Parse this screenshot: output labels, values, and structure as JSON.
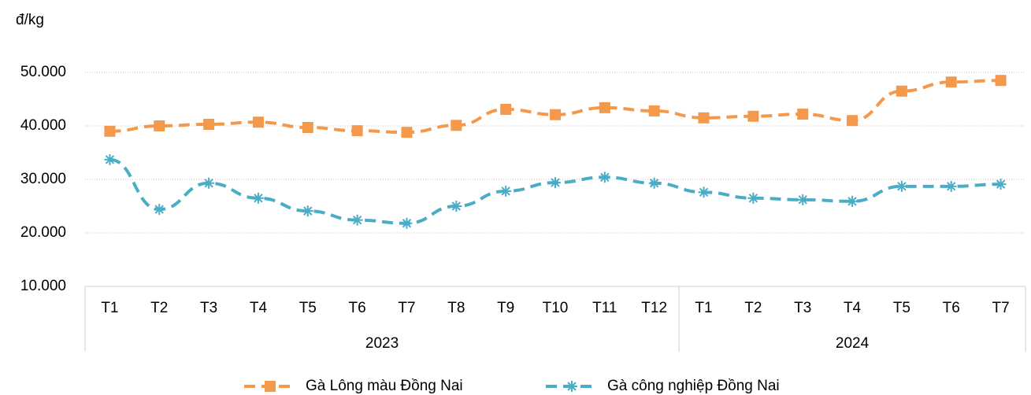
{
  "chart_data": {
    "type": "line",
    "y_label": "đ/kg",
    "categories": [
      "T1",
      "T2",
      "T3",
      "T4",
      "T5",
      "T6",
      "T7",
      "T8",
      "T9",
      "T10",
      "T11",
      "T12",
      "T1",
      "T2",
      "T3",
      "T4",
      "T5",
      "T6",
      "T7"
    ],
    "groups": [
      {
        "label": "2023",
        "span": 12
      },
      {
        "label": "2024",
        "span": 7
      }
    ],
    "series": [
      {
        "name": "Gà Lông màu Đồng Nai",
        "color": "#f4994c",
        "marker": "square",
        "values": [
          39000,
          40000,
          40300,
          40700,
          39700,
          39100,
          38800,
          40100,
          43100,
          42100,
          43400,
          42800,
          41500,
          41800,
          42200,
          41000,
          46500,
          48200,
          48500
        ]
      },
      {
        "name": "Gà công nghiệp Đồng Nai",
        "color": "#4bacc6",
        "marker": "asterisk",
        "values": [
          33700,
          24400,
          29300,
          26500,
          24100,
          22400,
          21800,
          25000,
          27800,
          29400,
          30400,
          29300,
          27600,
          26500,
          26200,
          25900,
          28700,
          28700,
          29100
        ]
      }
    ],
    "ylim": [
      10000,
      50000
    ],
    "yticks": [
      {
        "value": 10000,
        "label": "10.000"
      },
      {
        "value": 20000,
        "label": "20.000"
      },
      {
        "value": 30000,
        "label": "30.000"
      },
      {
        "value": 40000,
        "label": "40.000"
      },
      {
        "value": 50000,
        "label": "50.000"
      }
    ],
    "grid": true,
    "legend": "bottom"
  }
}
